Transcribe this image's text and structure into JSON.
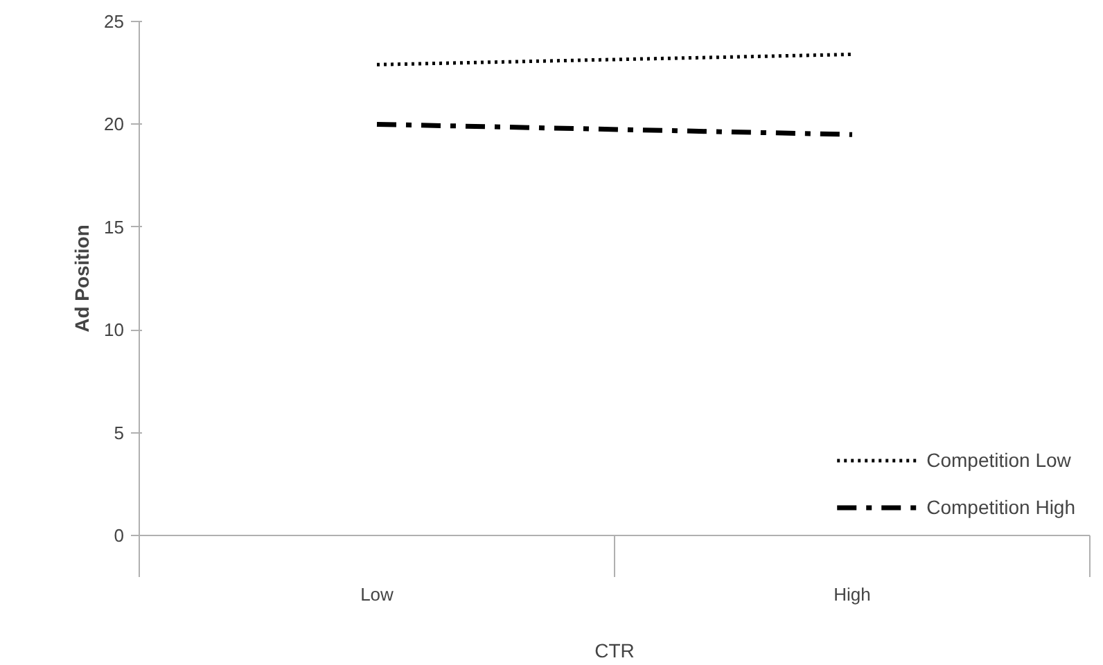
{
  "chart_data": {
    "type": "line",
    "xlabel": "CTR",
    "ylabel": "Ad Position",
    "categories": [
      "Low",
      "High"
    ],
    "series": [
      {
        "name": "Competition Low",
        "color": "#000000",
        "values": [
          22.9,
          23.4
        ],
        "line_style": "dotted"
      },
      {
        "name": "Competition High",
        "color": "#000000",
        "values": [
          20.0,
          19.5
        ],
        "line_style": "dashdot"
      }
    ],
    "ylim": [
      0,
      25
    ],
    "yticks": [
      0,
      5,
      10,
      15,
      20,
      25
    ],
    "grid": false,
    "legend": "bottom right"
  }
}
